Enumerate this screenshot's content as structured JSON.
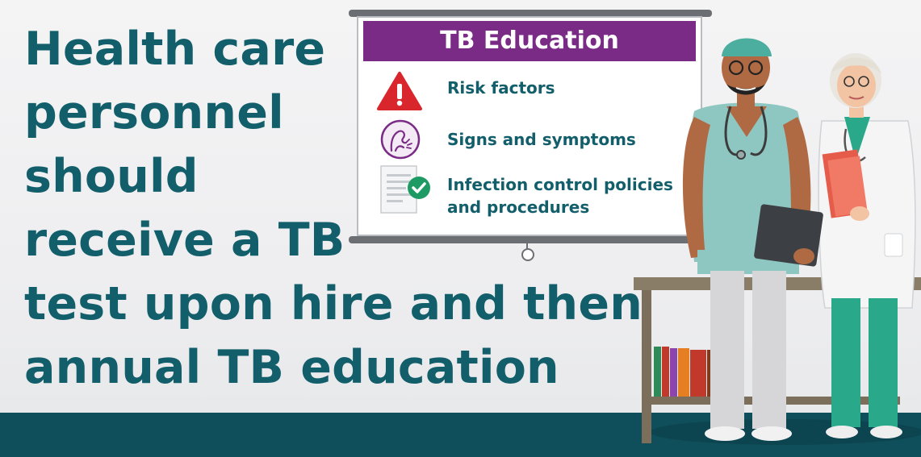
{
  "headline": {
    "lines": [
      "Health care",
      "personnel",
      "should",
      "receive a TB",
      "test upon hire and then",
      "annual TB education"
    ]
  },
  "board": {
    "title": "TB Education",
    "items": [
      {
        "label": "Risk factors",
        "icon": "warning-triangle-icon"
      },
      {
        "label": "Signs and symptoms",
        "icon": "coughing-person-icon"
      },
      {
        "label": "Infection control policies\nand procedures",
        "icon": "document-check-icon"
      }
    ]
  },
  "colors": {
    "headline": "#125f6b",
    "board_title_bg": "#7a2b86",
    "floor": "#0f4f5b",
    "warning": "#d9262c",
    "check": "#1e9b64"
  }
}
